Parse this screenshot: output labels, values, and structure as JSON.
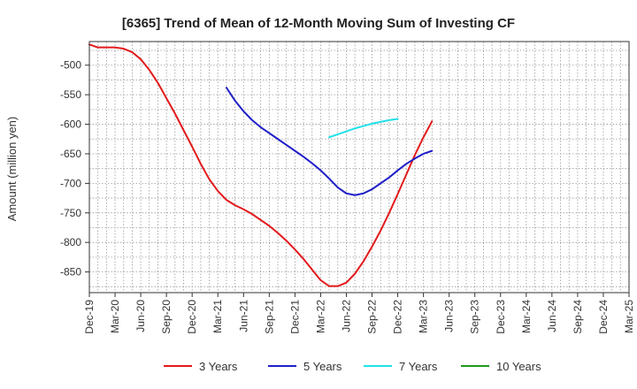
{
  "chart_data": {
    "type": "line",
    "title": "[6365]  Trend of Mean of 12-Month Moving Sum of Investing CF",
    "xlabel": "",
    "ylabel": "Amount (million yen)",
    "ylim": [
      -885,
      -460
    ],
    "y_ticks": [
      -500,
      -550,
      -600,
      -650,
      -700,
      -750,
      -800,
      -850
    ],
    "x_ticks": [
      "Dec-19",
      "Mar-20",
      "Jun-20",
      "Sep-20",
      "Dec-20",
      "Mar-21",
      "Jun-21",
      "Sep-21",
      "Dec-21",
      "Mar-22",
      "Jun-22",
      "Sep-22",
      "Dec-22",
      "Mar-23",
      "Jun-23",
      "Sep-23",
      "Dec-23",
      "Mar-24",
      "Jun-24",
      "Sep-24",
      "Dec-24",
      "Mar-25"
    ],
    "grid": true,
    "legend_position": "bottom",
    "series": [
      {
        "name": "3 Years",
        "color": "#e31a1c",
        "points": [
          [
            0,
            -465
          ],
          [
            1,
            -470
          ],
          [
            2,
            -470
          ],
          [
            3,
            -470
          ],
          [
            4,
            -472
          ],
          [
            5,
            -478
          ],
          [
            6,
            -490
          ],
          [
            7,
            -508
          ],
          [
            8,
            -530
          ],
          [
            9,
            -556
          ],
          [
            10,
            -582
          ],
          [
            11,
            -610
          ],
          [
            12,
            -638
          ],
          [
            13,
            -667
          ],
          [
            14,
            -693
          ],
          [
            15,
            -713
          ],
          [
            16,
            -728
          ],
          [
            17,
            -737
          ],
          [
            18,
            -744
          ],
          [
            19,
            -752
          ],
          [
            20,
            -762
          ],
          [
            21,
            -772
          ],
          [
            22,
            -784
          ],
          [
            23,
            -797
          ],
          [
            24,
            -812
          ],
          [
            25,
            -828
          ],
          [
            26,
            -846
          ],
          [
            27,
            -864
          ],
          [
            28,
            -874
          ],
          [
            29,
            -874
          ],
          [
            30,
            -868
          ],
          [
            31,
            -853
          ],
          [
            32,
            -832
          ],
          [
            33,
            -807
          ],
          [
            34,
            -780
          ],
          [
            35,
            -750
          ],
          [
            36,
            -718
          ],
          [
            37,
            -685
          ],
          [
            38,
            -652
          ],
          [
            39,
            -622
          ],
          [
            40,
            -595
          ]
        ]
      },
      {
        "name": "5 Years",
        "color": "#1f1fc8",
        "points": [
          [
            16,
            -538
          ],
          [
            17,
            -560
          ],
          [
            18,
            -578
          ],
          [
            19,
            -593
          ],
          [
            20,
            -605
          ],
          [
            21,
            -615
          ],
          [
            22,
            -625
          ],
          [
            23,
            -635
          ],
          [
            24,
            -645
          ],
          [
            25,
            -655
          ],
          [
            26,
            -666
          ],
          [
            27,
            -678
          ],
          [
            28,
            -692
          ],
          [
            29,
            -707
          ],
          [
            30,
            -717
          ],
          [
            31,
            -720
          ],
          [
            32,
            -717
          ],
          [
            33,
            -710
          ],
          [
            34,
            -700
          ],
          [
            35,
            -690
          ],
          [
            36,
            -678
          ],
          [
            37,
            -667
          ],
          [
            38,
            -658
          ],
          [
            39,
            -650
          ],
          [
            40,
            -645
          ]
        ]
      },
      {
        "name": "7 Years",
        "color": "#22e0e8",
        "points": [
          [
            28,
            -622
          ],
          [
            29,
            -617
          ],
          [
            30,
            -612
          ],
          [
            31,
            -607
          ],
          [
            32,
            -603
          ],
          [
            33,
            -599
          ],
          [
            34,
            -596
          ],
          [
            35,
            -593
          ],
          [
            36,
            -591
          ]
        ]
      },
      {
        "name": "10 Years",
        "color": "#1e9a1e",
        "points": []
      }
    ]
  }
}
